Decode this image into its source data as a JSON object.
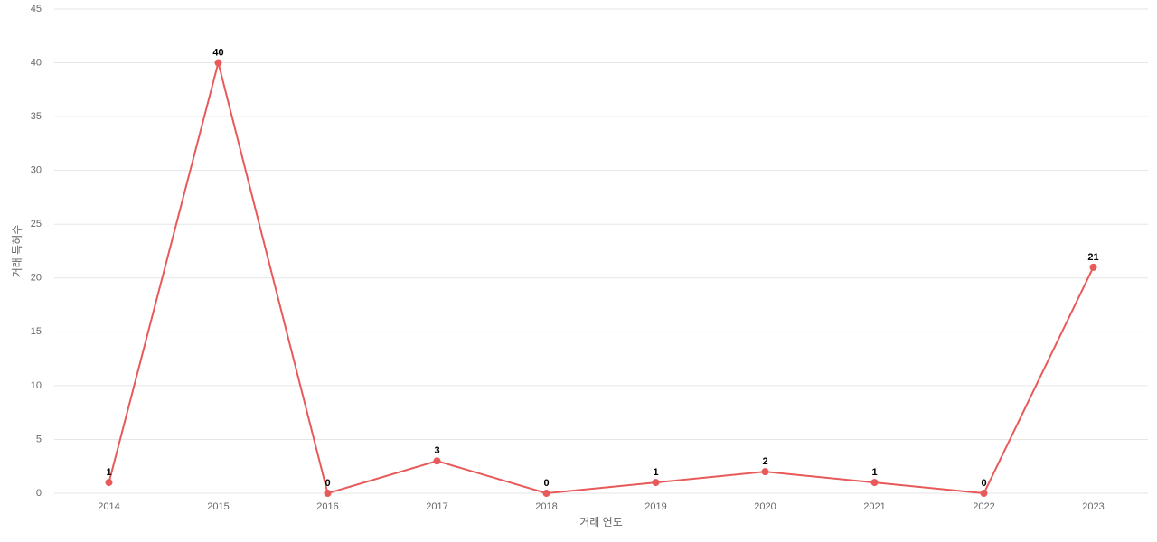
{
  "chart_data": {
    "type": "line",
    "x_label": "거래 연도",
    "y_label": "거래 특허수",
    "categories": [
      "2014",
      "2015",
      "2016",
      "2017",
      "2018",
      "2019",
      "2020",
      "2021",
      "2022",
      "2023"
    ],
    "series": [
      {
        "name": "거래 특허수",
        "color": "#e85a5a",
        "values": [
          1,
          40,
          0,
          3,
          0,
          1,
          2,
          1,
          0,
          21
        ]
      }
    ],
    "ylim": [
      0,
      45
    ],
    "yticks": [
      0,
      5,
      10,
      15,
      20,
      25,
      30,
      35,
      40,
      45
    ],
    "grid": true
  }
}
